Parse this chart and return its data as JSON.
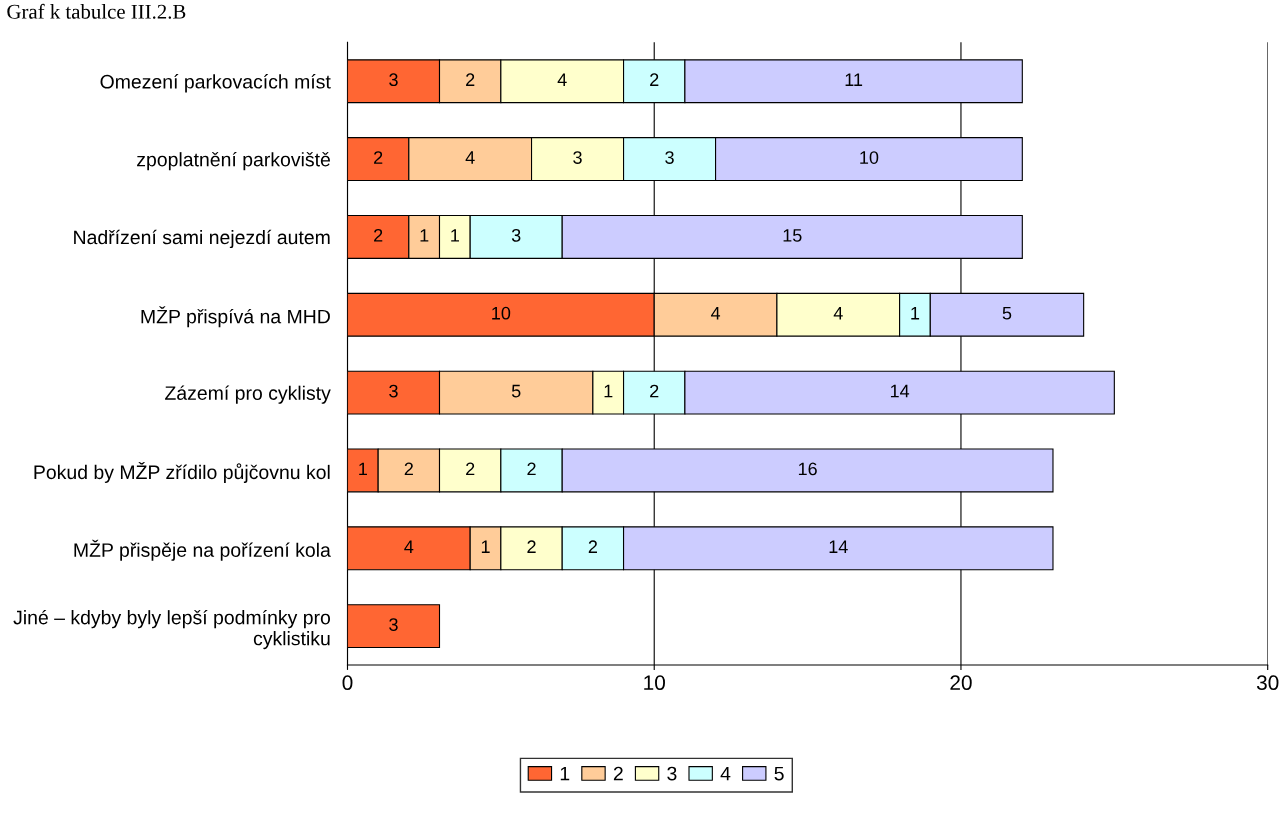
{
  "chart_data": {
    "type": "bar",
    "orientation": "horizontal",
    "stacked": true,
    "title": "Graf k tabulce III.2.B",
    "categories": [
      "Omezení parkovacích míst",
      "zpoplatnění parkoviště",
      "Nadřízení sami nejezdí autem",
      "MŽP přispívá na MHD",
      "Zázemí pro cyklisty",
      "Pokud by MŽP zřídilo půjčovnu kol",
      "MŽP přispěje na pořízení kola",
      "Jiné – kdyby byly lepší podmínky pro cyklistiku"
    ],
    "series": [
      {
        "name": "1",
        "color": "#ff6633",
        "values": [
          3,
          2,
          2,
          10,
          3,
          1,
          4,
          3
        ]
      },
      {
        "name": "2",
        "color": "#ffcc99",
        "values": [
          2,
          4,
          1,
          4,
          5,
          2,
          1,
          null
        ]
      },
      {
        "name": "3",
        "color": "#ffffcc",
        "values": [
          4,
          3,
          1,
          4,
          1,
          2,
          2,
          null
        ]
      },
      {
        "name": "4",
        "color": "#ccffff",
        "values": [
          2,
          3,
          3,
          1,
          2,
          2,
          2,
          null
        ]
      },
      {
        "name": "5",
        "color": "#ccccff",
        "values": [
          11,
          10,
          15,
          5,
          14,
          16,
          14,
          null
        ]
      }
    ],
    "xlim": [
      0,
      30
    ],
    "xticks": [
      0,
      10,
      20,
      30
    ],
    "grid": "x",
    "legend": "bottom",
    "data_labels": true
  }
}
